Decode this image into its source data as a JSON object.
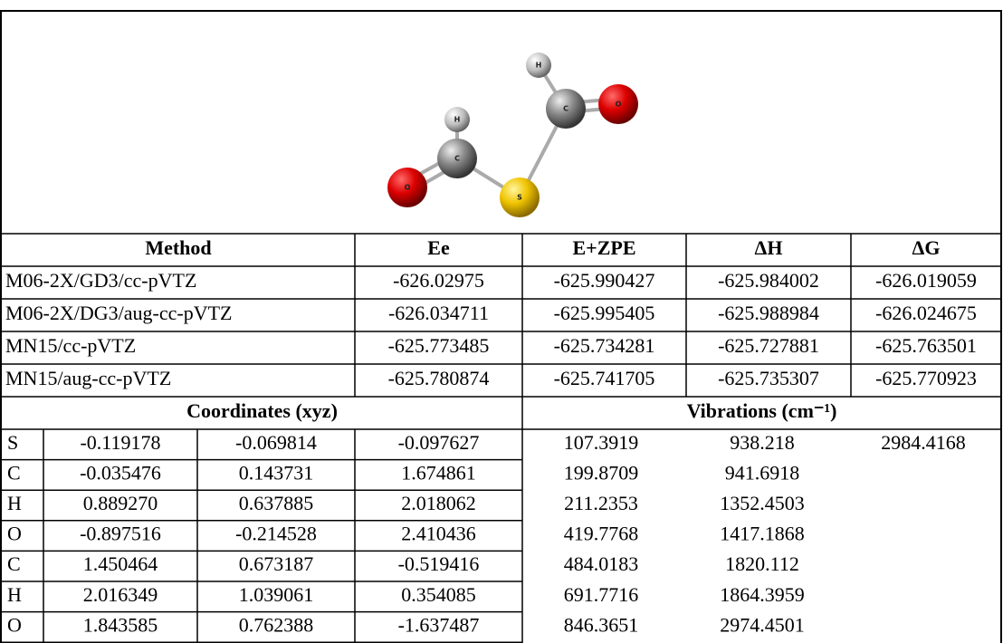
{
  "molecule": {
    "atoms": [
      {
        "label": "H"
      },
      {
        "label": "C"
      },
      {
        "label": "O"
      },
      {
        "label": "S"
      },
      {
        "label": "C"
      },
      {
        "label": "H"
      },
      {
        "label": "O"
      }
    ]
  },
  "energy_table": {
    "headers": [
      "Method",
      "Ee",
      "E+ZPE",
      "ΔH",
      "ΔG"
    ],
    "rows": [
      [
        "M06-2X/GD3/cc-pVTZ",
        "-626.02975",
        "-625.990427",
        "-625.984002",
        "-626.019059"
      ],
      [
        "M06-2X/DG3/aug-cc-pVTZ",
        "-626.034711",
        "-625.995405",
        "-625.988984",
        "-626.024675"
      ],
      [
        "MN15/cc-pVTZ",
        "-625.773485",
        "-625.734281",
        "-625.727881",
        "-625.763501"
      ],
      [
        "MN15/aug-cc-pVTZ",
        "-625.780874",
        "-625.741705",
        "-625.735307",
        "-625.770923"
      ]
    ]
  },
  "coordinates": {
    "header": "Coordinates (xyz)",
    "rows": [
      [
        "S",
        "-0.119178",
        "-0.069814",
        "-0.097627"
      ],
      [
        "C",
        "-0.035476",
        "0.143731",
        "1.674861"
      ],
      [
        "H",
        "0.889270",
        "0.637885",
        "2.018062"
      ],
      [
        "O",
        "-0.897516",
        "-0.214528",
        "2.410436"
      ],
      [
        "C",
        "1.450464",
        "0.673187",
        "-0.519416"
      ],
      [
        "H",
        "2.016349",
        "1.039061",
        "0.354085"
      ],
      [
        "O",
        "1.843585",
        "0.762388",
        "-1.637487"
      ]
    ]
  },
  "vibrations": {
    "header": "Vibrations (cm⁻¹)",
    "values": [
      "107.3919",
      "199.8709",
      "211.2353",
      "419.7768",
      "484.0183",
      "691.7716",
      "846.3651",
      "938.218",
      "941.6918",
      "1352.4503",
      "1417.1868",
      "1820.112",
      "1864.3959",
      "2974.4501",
      "2984.4168"
    ]
  }
}
